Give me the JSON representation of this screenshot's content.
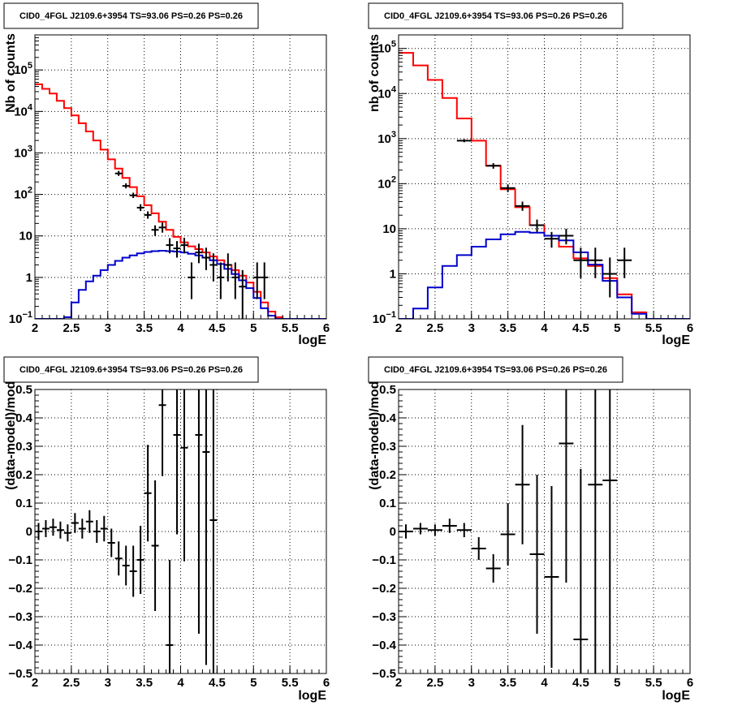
{
  "chart_data": [
    {
      "type": "line",
      "title": "CID0_4FGL J2109.6+3954 TS=93.06 PS=0.26 PS=0.26",
      "xlabel": "logE",
      "ylabel": "Nb of counts",
      "xlim": [
        2,
        6
      ],
      "ylim": [
        0.1,
        700000
      ],
      "yscale": "log",
      "grid": true,
      "xticks": [
        "2",
        "2.5",
        "3",
        "3.5",
        "4",
        "4.5",
        "5",
        "5.5",
        "6"
      ],
      "yticks": [
        {
          "v": 0.1,
          "base": "10",
          "exp": "−1"
        },
        {
          "v": 1,
          "base": "1",
          "exp": ""
        },
        {
          "v": 10,
          "base": "10",
          "exp": ""
        },
        {
          "v": 100,
          "base": "10",
          "exp": "2"
        },
        {
          "v": 1000,
          "base": "10",
          "exp": "3"
        },
        {
          "v": 10000,
          "base": "10",
          "exp": "4"
        },
        {
          "v": 100000,
          "base": "10",
          "exp": "5"
        }
      ],
      "bin_width": 0.1,
      "bin_start": 2.0,
      "series": [
        {
          "color": "#ff0000",
          "kind": "step",
          "values": [
            45000,
            35000,
            27000,
            18000,
            12000,
            8000,
            5200,
            3300,
            2000,
            1200,
            700,
            420,
            250,
            150,
            90,
            55,
            35,
            22,
            14,
            9.5,
            7,
            5.6,
            4.8,
            4.0,
            3.2,
            2.6,
            2.0,
            1.5,
            1.1,
            0.75,
            0.45,
            0.25,
            0.15,
            0.11,
            0.1,
            0.1,
            0.1,
            0.1,
            0.1,
            0.1
          ]
        },
        {
          "color": "#0000cc",
          "kind": "step",
          "values": [
            0.1,
            0.1,
            0.1,
            0.1,
            0.11,
            0.25,
            0.5,
            0.8,
            1.1,
            1.5,
            2.0,
            2.5,
            3.0,
            3.4,
            3.8,
            4.1,
            4.3,
            4.4,
            4.3,
            4.2,
            4.0,
            3.7,
            3.4,
            3.0,
            2.6,
            2.1,
            1.6,
            1.2,
            0.85,
            0.55,
            0.32,
            0.18,
            0.12,
            0.1,
            0.1,
            0.1,
            0.1,
            0.1,
            0.1,
            0.1
          ]
        },
        {
          "color": "#000000",
          "kind": "points",
          "points": [
            [
              3.15,
              320,
              280,
              370
            ],
            [
              3.25,
              160,
              140,
              185
            ],
            [
              3.35,
              95,
              82,
              110
            ],
            [
              3.45,
              48,
              40,
              58
            ],
            [
              3.55,
              32,
              26,
              39
            ],
            [
              3.65,
              14,
              10,
              18
            ],
            [
              3.75,
              16,
              12,
              21
            ],
            [
              3.85,
              6,
              3.8,
              8.8
            ],
            [
              3.95,
              5,
              3,
              7.5
            ],
            [
              4.05,
              6,
              3.8,
              9
            ],
            [
              4.15,
              1,
              0.3,
              2.3
            ],
            [
              4.25,
              4,
              2.2,
              6.5
            ],
            [
              4.35,
              3,
              1.5,
              5.2
            ],
            [
              4.45,
              2,
              0.8,
              3.8
            ],
            [
              4.55,
              1,
              0.3,
              2.3
            ],
            [
              4.65,
              2,
              0.8,
              3.8
            ],
            [
              4.75,
              1,
              0.3,
              2.3
            ],
            [
              4.85,
              0.6,
              0.1,
              1.5
            ],
            [
              5.05,
              1,
              0.3,
              2.3
            ],
            [
              5.15,
              1,
              0.3,
              2.3
            ]
          ]
        }
      ]
    },
    {
      "type": "line",
      "title": "CID0_4FGL J2109.6+3954 TS=93.06 PS=0.26 PS=0.26",
      "xlabel": "logE",
      "ylabel": "nb of counts",
      "xlim": [
        2,
        6
      ],
      "ylim": [
        0.1,
        200000
      ],
      "yscale": "log",
      "grid": true,
      "xticks": [
        "2",
        "2.5",
        "3",
        "3.5",
        "4",
        "4.5",
        "5",
        "5.5",
        "6"
      ],
      "yticks": [
        {
          "v": 0.1,
          "base": "10",
          "exp": "−1"
        },
        {
          "v": 1,
          "base": "1",
          "exp": ""
        },
        {
          "v": 10,
          "base": "10",
          "exp": ""
        },
        {
          "v": 100,
          "base": "10",
          "exp": "2"
        },
        {
          "v": 1000,
          "base": "10",
          "exp": "3"
        },
        {
          "v": 10000,
          "base": "10",
          "exp": "4"
        },
        {
          "v": 100000,
          "base": "10",
          "exp": "5"
        }
      ],
      "bin_width": 0.2,
      "bin_start": 2.0,
      "series": [
        {
          "color": "#ff0000",
          "kind": "step",
          "values": [
            80000,
            42000,
            20000,
            8000,
            2800,
            900,
            250,
            75,
            30,
            12,
            7,
            4,
            2.2,
            1.5,
            0.8,
            0.35,
            0.14,
            0.1,
            0.1,
            0.1
          ]
        },
        {
          "color": "#0000cc",
          "kind": "step",
          "values": [
            0.1,
            0.17,
            0.5,
            1.5,
            2.6,
            4.0,
            5.8,
            7.5,
            8.5,
            8.2,
            7.0,
            5.5,
            3.0,
            1.6,
            0.7,
            0.3,
            0.13,
            0.1,
            0.1,
            0.1
          ]
        },
        {
          "color": "#000000",
          "kind": "points",
          "points": [
            [
              2.9,
              900,
              830,
              970
            ],
            [
              3.3,
              250,
              215,
              285
            ],
            [
              3.5,
              80,
              65,
              95
            ],
            [
              3.7,
              32,
              25,
              40
            ],
            [
              3.9,
              12,
              8.5,
              16
            ],
            [
              4.1,
              6,
              3.8,
              8.5
            ],
            [
              4.3,
              7,
              4.5,
              10
            ],
            [
              4.5,
              2,
              0.8,
              3.8
            ],
            [
              4.7,
              2,
              0.8,
              3.8
            ],
            [
              4.9,
              1,
              0.3,
              2.3
            ],
            [
              5.1,
              2,
              0.8,
              3.8
            ]
          ]
        }
      ]
    },
    {
      "type": "scatter",
      "title": "CID0_4FGL J2109.6+3954 TS=93.06 PS=0.26 PS=0.26",
      "xlabel": "logE",
      "ylabel": "(data-model)/model",
      "xlim": [
        2,
        6
      ],
      "ylim": [
        -0.5,
        0.5
      ],
      "yscale": "linear",
      "grid": true,
      "xticks": [
        "2",
        "2.5",
        "3",
        "3.5",
        "4",
        "4.5",
        "5",
        "5.5",
        "6"
      ],
      "yticks": [
        {
          "v": -0.5,
          "base": "−0.5",
          "exp": ""
        },
        {
          "v": -0.4,
          "base": "−0.4",
          "exp": ""
        },
        {
          "v": -0.3,
          "base": "−0.3",
          "exp": ""
        },
        {
          "v": -0.2,
          "base": "−0.2",
          "exp": ""
        },
        {
          "v": -0.1,
          "base": "−0.1",
          "exp": ""
        },
        {
          "v": 0,
          "base": "0",
          "exp": ""
        },
        {
          "v": 0.1,
          "base": "0.1",
          "exp": ""
        },
        {
          "v": 0.2,
          "base": "0.2",
          "exp": ""
        },
        {
          "v": 0.3,
          "base": "0.3",
          "exp": ""
        },
        {
          "v": 0.4,
          "base": "0.4",
          "exp": ""
        },
        {
          "v": 0.5,
          "base": "0.5",
          "exp": ""
        }
      ],
      "bin_width": 0.1,
      "series": [
        {
          "color": "#000000",
          "kind": "errpoints",
          "points": [
            [
              2.05,
              0.0,
              0.03
            ],
            [
              2.15,
              0.01,
              0.03
            ],
            [
              2.25,
              0.015,
              0.03
            ],
            [
              2.35,
              0.005,
              0.03
            ],
            [
              2.45,
              -0.005,
              0.03
            ],
            [
              2.55,
              0.03,
              0.035
            ],
            [
              2.65,
              0.01,
              0.035
            ],
            [
              2.75,
              0.035,
              0.04
            ],
            [
              2.85,
              0.0,
              0.04
            ],
            [
              2.95,
              0.01,
              0.045
            ],
            [
              3.05,
              -0.04,
              0.05
            ],
            [
              3.15,
              -0.095,
              0.06
            ],
            [
              3.25,
              -0.12,
              0.07
            ],
            [
              3.35,
              -0.14,
              0.09
            ],
            [
              3.45,
              -0.1,
              0.12
            ],
            [
              3.55,
              0.135,
              0.17
            ],
            [
              3.65,
              -0.05,
              0.23
            ],
            [
              3.75,
              0.445,
              0.25
            ],
            [
              3.85,
              -0.4,
              0.3
            ],
            [
              3.95,
              0.34,
              0.35
            ],
            [
              4.05,
              0.295,
              0.4
            ],
            [
              4.25,
              0.34,
              0.7
            ],
            [
              4.35,
              0.28,
              0.75
            ],
            [
              4.45,
              0.04,
              0.9
            ]
          ]
        }
      ]
    },
    {
      "type": "scatter",
      "title": "CID0_4FGL J2109.6+3954 TS=93.06 PS=0.26 PS=0.26",
      "xlabel": "logE",
      "ylabel": "(data-model)/model",
      "xlim": [
        2,
        6
      ],
      "ylim": [
        -0.5,
        0.5
      ],
      "yscale": "linear",
      "grid": true,
      "xticks": [
        "2",
        "2.5",
        "3",
        "3.5",
        "4",
        "4.5",
        "5",
        "5.5",
        "6"
      ],
      "yticks": [
        {
          "v": -0.5,
          "base": "−0.5",
          "exp": ""
        },
        {
          "v": -0.4,
          "base": "−0.4",
          "exp": ""
        },
        {
          "v": -0.3,
          "base": "−0.3",
          "exp": ""
        },
        {
          "v": -0.2,
          "base": "−0.2",
          "exp": ""
        },
        {
          "v": -0.1,
          "base": "−0.1",
          "exp": ""
        },
        {
          "v": 0,
          "base": "0",
          "exp": ""
        },
        {
          "v": 0.1,
          "base": "0.1",
          "exp": ""
        },
        {
          "v": 0.2,
          "base": "0.2",
          "exp": ""
        },
        {
          "v": 0.3,
          "base": "0.3",
          "exp": ""
        },
        {
          "v": 0.4,
          "base": "0.4",
          "exp": ""
        },
        {
          "v": 0.5,
          "base": "0.5",
          "exp": ""
        }
      ],
      "bin_width": 0.2,
      "series": [
        {
          "color": "#000000",
          "kind": "errpoints",
          "points": [
            [
              2.1,
              0.0,
              0.025
            ],
            [
              2.3,
              0.01,
              0.02
            ],
            [
              2.5,
              0.005,
              0.02
            ],
            [
              2.7,
              0.02,
              0.025
            ],
            [
              2.9,
              0.005,
              0.025
            ],
            [
              3.1,
              -0.06,
              0.04
            ],
            [
              3.3,
              -0.13,
              0.05
            ],
            [
              3.5,
              -0.01,
              0.11
            ],
            [
              3.7,
              0.165,
              0.21
            ],
            [
              3.9,
              -0.08,
              0.28
            ],
            [
              4.1,
              -0.16,
              0.32
            ],
            [
              4.3,
              0.31,
              0.49
            ],
            [
              4.5,
              -0.38,
              0.6
            ],
            [
              4.7,
              0.165,
              0.7
            ],
            [
              4.9,
              0.18,
              0.75
            ]
          ]
        }
      ]
    }
  ]
}
